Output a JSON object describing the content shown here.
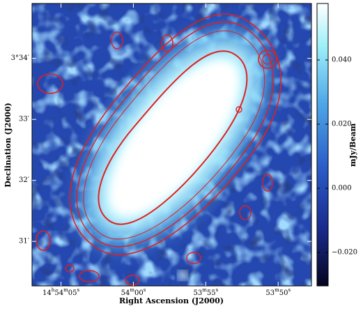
{
  "chart_data": {
    "type": "image",
    "x_label": "Right Ascension (J2000)",
    "y_label": "Declination (J2000)",
    "colorbar_label": "mJy/Beam",
    "xlim": [
      127.0,
      107.7
    ],
    "xticks": [
      {
        "value": 125,
        "label": "14h54m05s"
      },
      {
        "value": 120,
        "label": "54m00s"
      },
      {
        "value": 115,
        "label": "53m55s"
      },
      {
        "value": 110,
        "label": "53m50s"
      }
    ],
    "ylim": [
      30.27,
      34.9
    ],
    "yticks": [
      {
        "value": 31,
        "label": "31′"
      },
      {
        "value": 32,
        "label": "32′"
      },
      {
        "value": 33,
        "label": "33′"
      },
      {
        "value": 34,
        "label": "3°34′"
      }
    ],
    "clim": [
      -0.0304,
      0.0576
    ],
    "cticks": [
      {
        "value": -0.02,
        "label": "−0.020"
      },
      {
        "value": 0,
        "label": "0.000"
      },
      {
        "value": 0.02,
        "label": "0.020"
      },
      {
        "value": 0.04,
        "label": "0.040"
      }
    ],
    "contour_color": "#e02020"
  }
}
